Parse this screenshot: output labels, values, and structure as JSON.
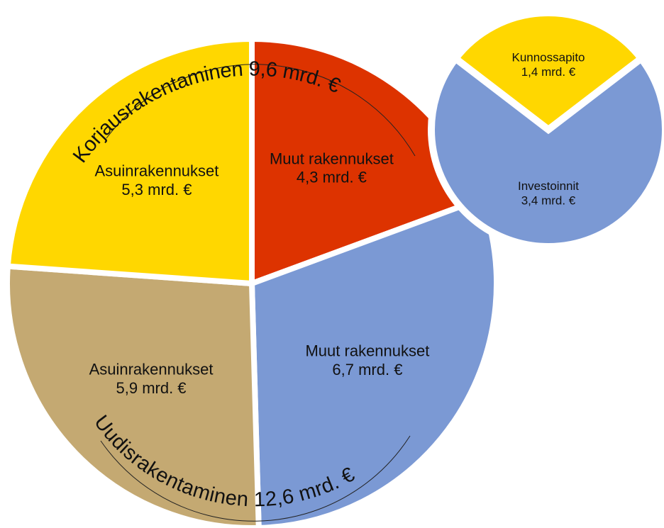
{
  "chart_data": [
    {
      "type": "pie",
      "categories": [
        "Muut rakennukset",
        "Muut rakennukset",
        "Asuinrakennukset",
        "Asuinrakennukset"
      ],
      "values": [
        4.3,
        6.7,
        5.9,
        5.3
      ],
      "value_labels": [
        "4,3 mrd. €",
        "6,7 mrd. €",
        "5,9 mrd. €",
        "5,3 mrd. €"
      ],
      "colors": [
        "#dd3300",
        "#7b99d4",
        "#c4a972",
        "#ffd700"
      ],
      "annotations": [
        "Korjausrakentaminen 9,6 mrd. €",
        "Uudisrakentaminen 12,6 mrd. €"
      ]
    },
    {
      "type": "pie",
      "categories": [
        "Kunnossapito",
        "Investoinnit"
      ],
      "values": [
        1.4,
        3.4
      ],
      "value_labels": [
        "1,4 mrd. €",
        "3,4 mrd. €"
      ],
      "colors": [
        "#ffd700",
        "#7b99d4"
      ]
    }
  ]
}
